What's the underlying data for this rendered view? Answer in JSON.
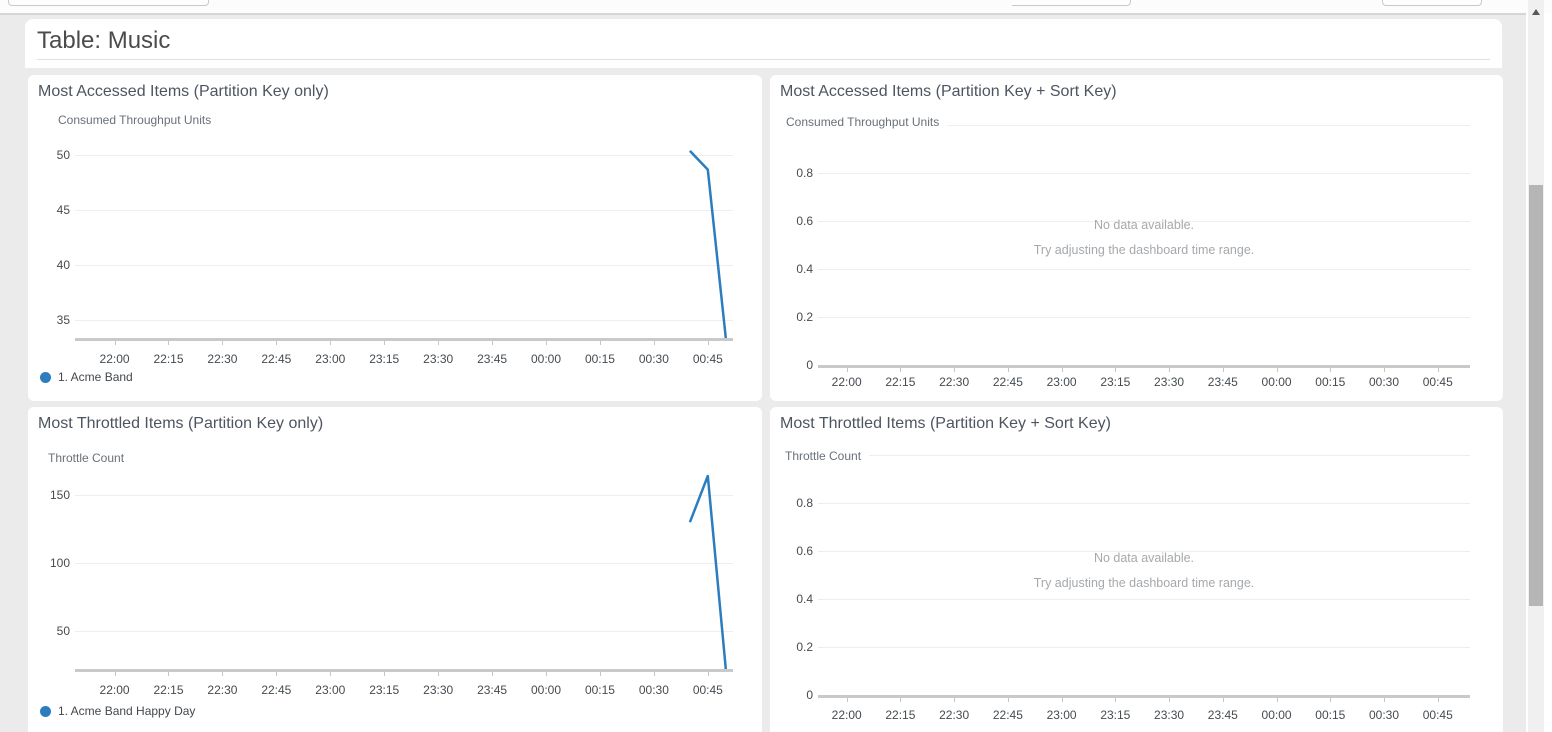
{
  "page": {
    "header_title": "Table: Music"
  },
  "colors": {
    "line_blue": "#2b7dbf",
    "panel_background": "#ffffff",
    "page_background": "#ebebeb",
    "no_data_text": "#a5a9ad"
  },
  "chart_data": [
    {
      "type": "line",
      "title": "Most Accessed Items (Partition Key only)",
      "ylabel": "Consumed Throughput Units",
      "categories": [
        "22:00",
        "22:15",
        "22:30",
        "22:45",
        "23:00",
        "23:15",
        "23:30",
        "23:45",
        "00:00",
        "00:15",
        "00:30",
        "00:45"
      ],
      "x_minutes": [
        0,
        15,
        30,
        45,
        60,
        75,
        90,
        105,
        120,
        135,
        150,
        165
      ],
      "xlim": [
        -11,
        172
      ],
      "ylim": [
        33.4,
        52.3
      ],
      "y_ticks": [
        {
          "v": 35,
          "label": "35"
        },
        {
          "v": 40,
          "label": "40"
        },
        {
          "v": 45,
          "label": "45"
        },
        {
          "v": 50,
          "label": "50"
        }
      ],
      "grid": true,
      "legend_position": "bottom-left",
      "series": [
        {
          "name": "1. Acme Band",
          "color": "#2b7dbf",
          "points": [
            {
              "x": 160,
              "y": 50.4
            },
            {
              "x": 165,
              "y": 48.7
            },
            {
              "x": 170,
              "y": 33.4
            }
          ]
        }
      ],
      "no_data": null
    },
    {
      "type": "line",
      "title": "Most Accessed Items (Partition Key + Sort Key)",
      "ylabel": "Consumed Throughput Units",
      "categories": [
        "22:00",
        "22:15",
        "22:30",
        "22:45",
        "23:00",
        "23:15",
        "23:30",
        "23:45",
        "00:00",
        "00:15",
        "00:30",
        "00:45"
      ],
      "x_minutes": [
        0,
        15,
        30,
        45,
        60,
        75,
        90,
        105,
        120,
        135,
        150,
        165
      ],
      "xlim": [
        -8,
        174
      ],
      "ylim": [
        0,
        1
      ],
      "y_ticks": [
        {
          "v": 0,
          "label": "0"
        },
        {
          "v": 0.2,
          "label": "0.2"
        },
        {
          "v": 0.4,
          "label": "0.4"
        },
        {
          "v": 0.6,
          "label": "0.6"
        },
        {
          "v": 0.8,
          "label": "0.8"
        },
        {
          "v": 1,
          "label": ""
        }
      ],
      "grid": true,
      "series": [],
      "no_data": {
        "line1": "No data available.",
        "line2": "Try adjusting the dashboard time range."
      }
    },
    {
      "type": "line",
      "title": "Most Throttled Items (Partition Key only)",
      "ylabel": "Throttle Count",
      "categories": [
        "22:00",
        "22:15",
        "22:30",
        "22:45",
        "23:00",
        "23:15",
        "23:30",
        "23:45",
        "00:00",
        "00:15",
        "00:30",
        "00:45"
      ],
      "x_minutes": [
        0,
        15,
        30,
        45,
        60,
        75,
        90,
        105,
        120,
        135,
        150,
        165
      ],
      "xlim": [
        -11,
        172
      ],
      "ylim": [
        22,
        178
      ],
      "y_ticks": [
        {
          "v": 50,
          "label": "50"
        },
        {
          "v": 100,
          "label": "100"
        },
        {
          "v": 150,
          "label": "150"
        }
      ],
      "grid": true,
      "legend_position": "bottom-left",
      "series": [
        {
          "name": "1. Acme Band Happy Day",
          "color": "#2b7dbf",
          "points": [
            {
              "x": 160,
              "y": 130
            },
            {
              "x": 165,
              "y": 164
            },
            {
              "x": 170,
              "y": 22
            }
          ]
        }
      ],
      "no_data": null
    },
    {
      "type": "line",
      "title": "Most Throttled Items (Partition Key + Sort Key)",
      "ylabel": "Throttle Count",
      "categories": [
        "22:00",
        "22:15",
        "22:30",
        "22:45",
        "23:00",
        "23:15",
        "23:30",
        "23:45",
        "00:00",
        "00:15",
        "00:30",
        "00:45"
      ],
      "x_minutes": [
        0,
        15,
        30,
        45,
        60,
        75,
        90,
        105,
        120,
        135,
        150,
        165
      ],
      "xlim": [
        -8,
        174
      ],
      "ylim": [
        0,
        1
      ],
      "y_ticks": [
        {
          "v": 0,
          "label": "0"
        },
        {
          "v": 0.2,
          "label": "0.2"
        },
        {
          "v": 0.4,
          "label": "0.4"
        },
        {
          "v": 0.6,
          "label": "0.6"
        },
        {
          "v": 0.8,
          "label": "0.8"
        },
        {
          "v": 1,
          "label": ""
        }
      ],
      "grid": true,
      "series": [],
      "no_data": {
        "line1": "No data available.",
        "line2": "Try adjusting the dashboard time range."
      }
    }
  ]
}
